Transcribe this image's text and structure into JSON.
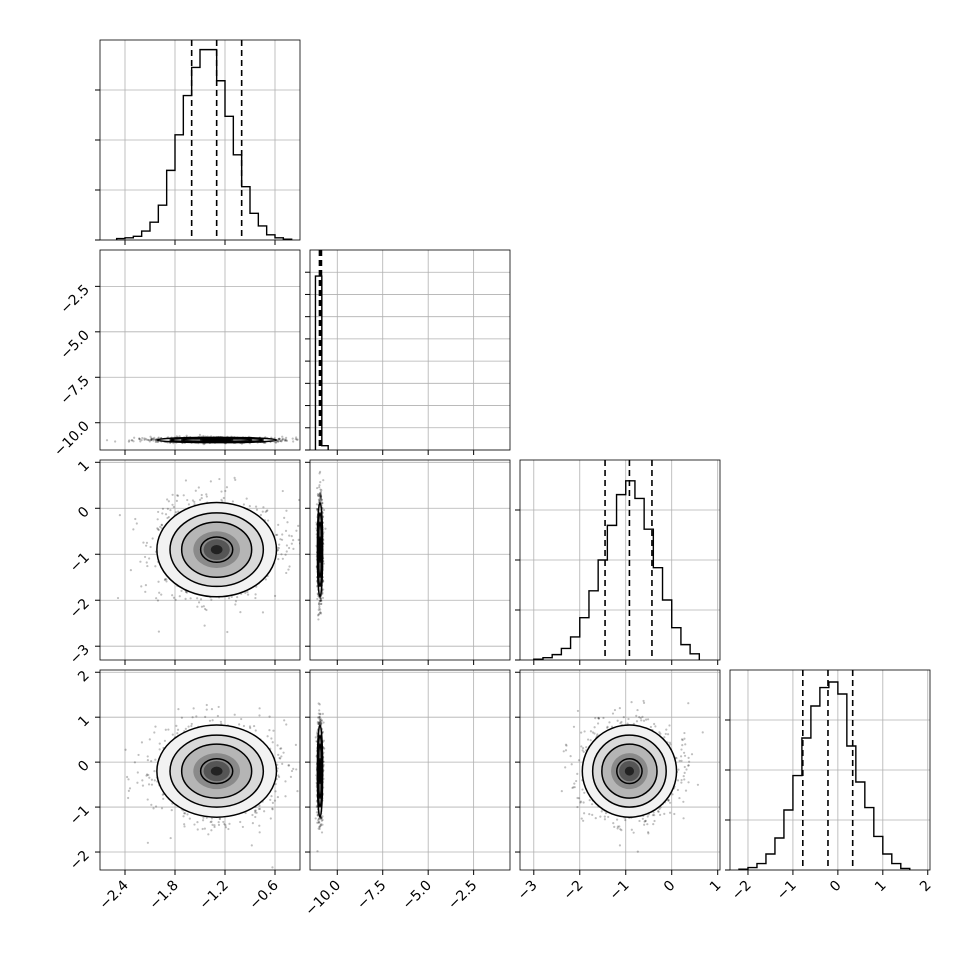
{
  "chart_data": {
    "type": "corner",
    "grid": true,
    "title": "",
    "parameters": [
      {
        "xlim": [
          -2.7,
          -0.3
        ],
        "ylim": [
          -3.3,
          1.05
        ],
        "xticks": [
          "−2.4",
          "−1.8",
          "−1.2",
          "−0.6"
        ],
        "xtick_values": [
          -2.4,
          -1.8,
          -1.2,
          -0.6
        ],
        "yticks": [],
        "hist": {
          "edges": [
            -2.5,
            -2.4,
            -2.3,
            -2.2,
            -2.1,
            -2.0,
            -1.9,
            -1.8,
            -1.7,
            -1.6,
            -1.5,
            -1.4,
            -1.3,
            -1.2,
            -1.1,
            -1.0,
            -0.9,
            -0.8,
            -0.7,
            -0.6,
            -0.5,
            -0.4
          ],
          "counts": [
            0.02,
            0.03,
            0.05,
            0.12,
            0.24,
            0.47,
            0.94,
            1.42,
            1.95,
            2.33,
            2.57,
            2.57,
            2.15,
            1.67,
            1.15,
            0.72,
            0.36,
            0.19,
            0.07,
            0.03,
            0.01
          ],
          "quantiles": [
            -1.6,
            -1.3,
            -1.0
          ],
          "ylim": [
            0,
            2.7
          ],
          "yticks_count": 4
        }
      },
      {
        "xlim": [
          -11.5,
          -0.5
        ],
        "ylim": [
          -11.5,
          -0.5
        ],
        "xticks": [
          "−10.0",
          "−7.5",
          "−5.0",
          "−2.5"
        ],
        "xtick_values": [
          -10.0,
          -7.5,
          -5.0,
          -2.5
        ],
        "yticks": [
          "−2.5",
          "−5.0",
          "−7.5",
          "−10.0"
        ],
        "ytick_values": [
          -2.5,
          -5.0,
          -7.5,
          -10.0
        ],
        "hist": {
          "edges": [
            -11.2,
            -10.85,
            -10.5
          ],
          "counts": [
            2.0,
            0.05
          ],
          "quantiles": [
            -10.98,
            -10.93,
            -10.87
          ],
          "ylim": [
            0,
            2.3
          ],
          "yticks_count": 9
        }
      },
      {
        "xlim": [
          -3.3,
          1.05
        ],
        "ylim": [
          -3.3,
          1.05
        ],
        "xticks": [
          "−3",
          "−2",
          "−1",
          "0",
          "1"
        ],
        "xtick_values": [
          -3,
          -2,
          -1,
          0,
          1
        ],
        "yticks": [
          "1",
          "0",
          "−1",
          "−2",
          "−3"
        ],
        "ytick_values": [
          1,
          0,
          -1,
          -2,
          -3
        ],
        "hist": {
          "edges": [
            -3.0,
            -2.8,
            -2.6,
            -2.4,
            -2.2,
            -2.0,
            -1.8,
            -1.6,
            -1.4,
            -1.2,
            -1.0,
            -0.8,
            -0.6,
            -0.4,
            -0.2,
            0.0,
            0.2,
            0.4,
            0.6
          ],
          "counts": [
            0.01,
            0.03,
            0.07,
            0.15,
            0.3,
            0.55,
            0.9,
            1.3,
            1.75,
            2.15,
            2.33,
            2.1,
            1.7,
            1.2,
            0.78,
            0.42,
            0.2,
            0.08
          ],
          "quantiles": [
            -1.45,
            -0.92,
            -0.43
          ],
          "ylim": [
            0,
            2.6
          ],
          "yticks_count": 4
        }
      },
      {
        "xlim": [
          -2.4,
          2.05
        ],
        "ylim": [
          -2.4,
          2.05
        ],
        "xticks": [
          "−2",
          "−1",
          "0",
          "1",
          "2"
        ],
        "xtick_values": [
          -2,
          -1,
          0,
          1,
          2
        ],
        "yticks": [
          "2",
          "1",
          "0",
          "−1",
          "−2"
        ],
        "ytick_values": [
          2,
          1,
          0,
          -1,
          -2
        ],
        "hist": {
          "edges": [
            -2.2,
            -2.0,
            -1.8,
            -1.6,
            -1.4,
            -1.2,
            -1.0,
            -0.8,
            -0.6,
            -0.4,
            -0.2,
            0.0,
            0.2,
            0.4,
            0.6,
            0.8,
            1.0,
            1.2,
            1.4,
            1.6
          ],
          "counts": [
            0.01,
            0.03,
            0.08,
            0.2,
            0.4,
            0.75,
            1.18,
            1.65,
            2.05,
            2.28,
            2.35,
            2.2,
            1.55,
            1.1,
            0.78,
            0.42,
            0.2,
            0.08,
            0.02
          ],
          "quantiles": [
            -0.78,
            -0.22,
            0.33
          ],
          "ylim": [
            0,
            2.5
          ],
          "yticks_count": 4
        }
      }
    ],
    "scatter_panels": [
      {
        "row": 1,
        "col": 0,
        "center": [
          -1.3,
          -10.95
        ],
        "spread": [
          0.35,
          0.07
        ]
      },
      {
        "row": 2,
        "col": 0,
        "center": [
          -1.3,
          -0.9
        ],
        "spread": [
          0.35,
          0.5
        ]
      },
      {
        "row": 2,
        "col": 1,
        "center": [
          -10.95,
          -0.9
        ],
        "spread": [
          0.07,
          0.5
        ]
      },
      {
        "row": 3,
        "col": 0,
        "center": [
          -1.3,
          -0.2
        ],
        "spread": [
          0.35,
          0.5
        ]
      },
      {
        "row": 3,
        "col": 1,
        "center": [
          -10.95,
          -0.2
        ],
        "spread": [
          0.07,
          0.5
        ]
      },
      {
        "row": 3,
        "col": 2,
        "center": [
          -0.92,
          -0.2
        ],
        "spread": [
          0.5,
          0.5
        ]
      }
    ]
  }
}
